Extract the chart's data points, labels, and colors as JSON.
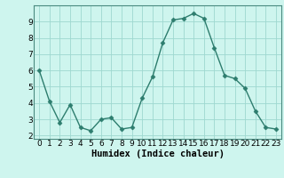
{
  "x": [
    0,
    1,
    2,
    3,
    4,
    5,
    6,
    7,
    8,
    9,
    10,
    11,
    12,
    13,
    14,
    15,
    16,
    17,
    18,
    19,
    20,
    21,
    22,
    23
  ],
  "y": [
    6.0,
    4.1,
    2.8,
    3.9,
    2.5,
    2.3,
    3.0,
    3.1,
    2.4,
    2.5,
    4.3,
    5.6,
    7.7,
    9.1,
    9.2,
    9.5,
    9.2,
    7.4,
    5.7,
    5.5,
    4.9,
    3.5,
    2.5,
    2.4
  ],
  "line_color": "#2d7d6e",
  "marker": "D",
  "marker_size": 2.5,
  "bg_color": "#cef5ee",
  "grid_color": "#9ed8d0",
  "xlabel": "Humidex (Indice chaleur)",
  "ylim": [
    1.8,
    10.0
  ],
  "xlim": [
    -0.5,
    23.5
  ],
  "yticks": [
    2,
    3,
    4,
    5,
    6,
    7,
    8,
    9
  ],
  "xticks": [
    0,
    1,
    2,
    3,
    4,
    5,
    6,
    7,
    8,
    9,
    10,
    11,
    12,
    13,
    14,
    15,
    16,
    17,
    18,
    19,
    20,
    21,
    22,
    23
  ],
  "tick_label_size": 6.5,
  "xlabel_size": 7.5
}
